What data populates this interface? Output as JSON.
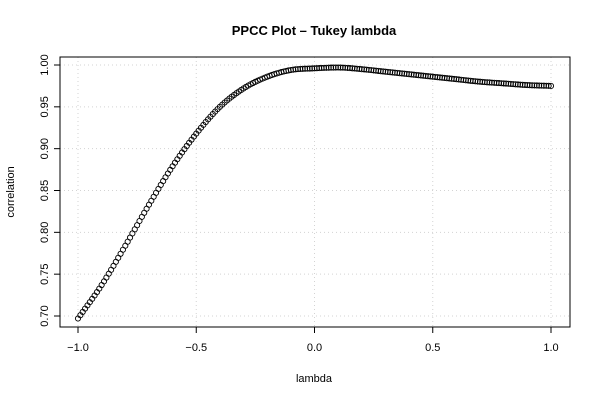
{
  "chart_data": {
    "type": "scatter",
    "title": "PPCC Plot – Tukey lambda",
    "xlabel": "lambda",
    "ylabel": "correlation",
    "xlim": [
      -1.0,
      1.0
    ],
    "ylim": [
      0.7,
      1.0
    ],
    "x_ticks": [
      -1.0,
      -0.5,
      0.0,
      0.5,
      1.0
    ],
    "x_tick_labels": [
      "−1.0",
      "−0.5",
      "0.0",
      "0.5",
      "1.0"
    ],
    "y_ticks": [
      0.7,
      0.75,
      0.8,
      0.85,
      0.9,
      0.95,
      1.0
    ],
    "y_tick_labels": [
      "0.70",
      "0.75",
      "0.80",
      "0.85",
      "0.90",
      "0.95",
      "1.00"
    ],
    "grid": true,
    "marker": "open-circle",
    "x": [
      -1.0,
      -0.9,
      -0.8,
      -0.7,
      -0.6,
      -0.5,
      -0.4,
      -0.3,
      -0.2,
      -0.1,
      0.0,
      0.1,
      0.2,
      0.3,
      0.4,
      0.5,
      0.6,
      0.7,
      0.8,
      0.9,
      1.0
    ],
    "y": [
      0.697,
      0.737,
      0.784,
      0.833,
      0.879,
      0.918,
      0.95,
      0.972,
      0.986,
      0.994,
      0.996,
      0.997,
      0.995,
      0.992,
      0.989,
      0.986,
      0.983,
      0.98,
      0.978,
      0.976,
      0.975
    ],
    "n_points": 201
  }
}
